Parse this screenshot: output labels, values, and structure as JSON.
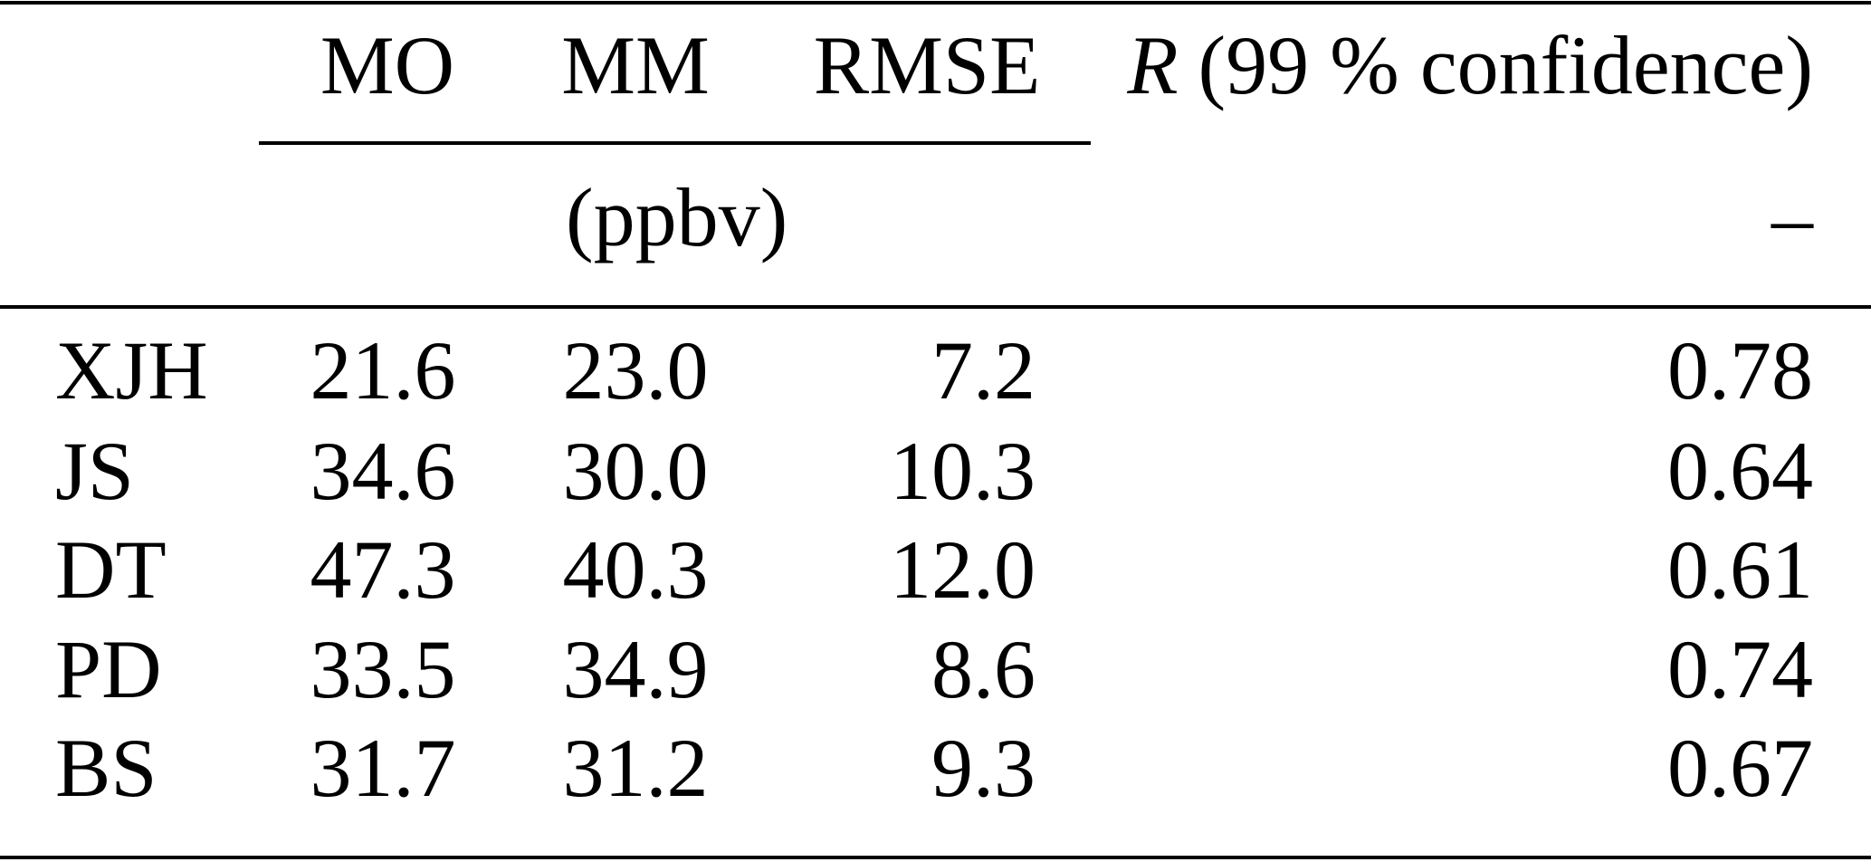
{
  "header": {
    "columns": [
      "MO",
      "MM",
      "RMSE"
    ],
    "r_symbol": "R",
    "r_suffix": "(99 % confidence)"
  },
  "units": {
    "ppbv": "(ppbv)",
    "r": "–"
  },
  "table": {
    "rows": [
      [
        "XJH",
        "21.6",
        "23.0",
        "7.2",
        "0.78"
      ],
      [
        "JS",
        "34.6",
        "30.0",
        "10.3",
        "0.64"
      ],
      [
        "DT",
        "47.3",
        "40.3",
        "12.0",
        "0.61"
      ],
      [
        "PD",
        "33.5",
        "34.9",
        "8.6",
        "0.74"
      ],
      [
        "BS",
        "31.7",
        "31.2",
        "9.3",
        "0.67"
      ]
    ]
  }
}
